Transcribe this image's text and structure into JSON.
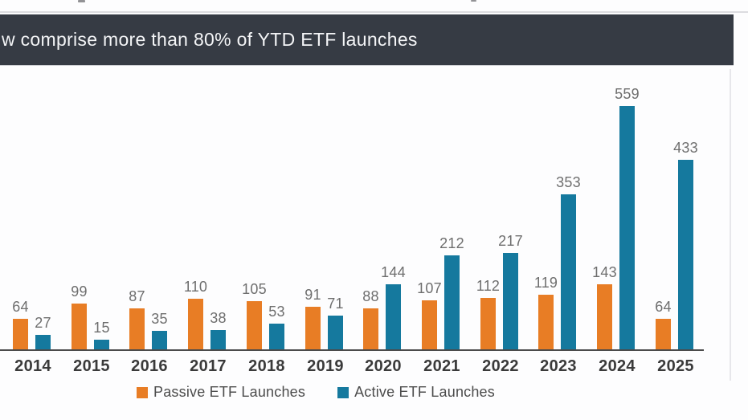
{
  "header": {
    "title": "w comprise more than 80% of YTD ETF launches",
    "background": "#363b44",
    "text_color": "#f4f5f7"
  },
  "chart_data": {
    "type": "bar",
    "title": "w comprise more than 80% of YTD ETF launches",
    "categories": [
      "2014",
      "2015",
      "2016",
      "2017",
      "2018",
      "2019",
      "2020",
      "2021",
      "2022",
      "2023",
      "2024",
      "2025"
    ],
    "series": [
      {
        "name": "Passive ETF Launches",
        "color": "#e87d25",
        "values": [
          64,
          99,
          87,
          110,
          105,
          91,
          88,
          107,
          112,
          119,
          143,
          64
        ]
      },
      {
        "name": "Active ETF Launches",
        "color": "#15799e",
        "values": [
          27,
          15,
          35,
          38,
          53,
          71,
          144,
          212,
          217,
          353,
          559,
          433
        ]
      }
    ],
    "xlabel": "",
    "ylabel": "",
    "ylim": [
      0,
      600
    ],
    "grid": false,
    "data_labels": true,
    "legend_position": "bottom",
    "axis_color": "#4b4b4b",
    "label_color": "#6e6e6e",
    "tick_color": "#3a3a3a"
  }
}
